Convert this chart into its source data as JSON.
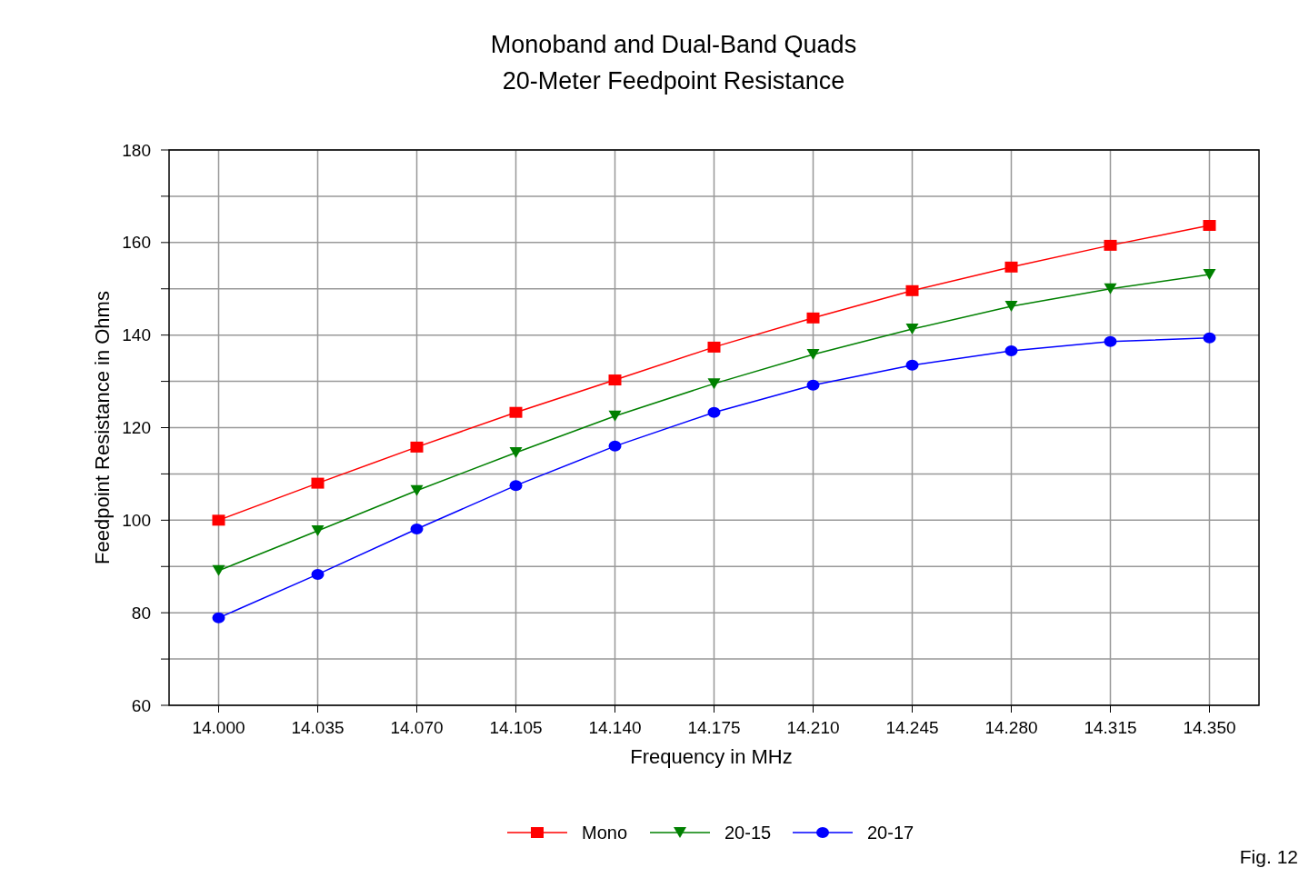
{
  "chart_data": {
    "type": "line",
    "title": "Monoband and Dual-Band Quads",
    "subtitle": "20-Meter Feedpoint Resistance",
    "xlabel": "Frequency in MHz",
    "ylabel": "Feedpoint Resistance in Ohms",
    "categories": [
      "14.000",
      "14.035",
      "14.070",
      "14.105",
      "14.140",
      "14.175",
      "14.210",
      "14.245",
      "14.280",
      "14.315",
      "14.350"
    ],
    "ylim": [
      60,
      180
    ],
    "yticks": [
      60,
      {
        "value": 70,
        "label": null
      },
      80,
      {
        "value": 90,
        "label": null
      },
      100,
      {
        "value": 110,
        "label": null
      },
      120,
      {
        "value": 130,
        "label": null
      },
      140,
      {
        "value": 150,
        "label": null
      },
      160,
      {
        "value": 170,
        "label": null
      },
      180
    ],
    "grid": true,
    "legend": "bottom",
    "line_style": "solid",
    "series": [
      {
        "name": "Mono",
        "color": "#ff0000",
        "marker": "square",
        "values": [
          100,
          108,
          115.8,
          123.3,
          130.3,
          137.4,
          143.7,
          149.6,
          154.7,
          159.4,
          163.7
        ]
      },
      {
        "name": "20-15",
        "color": "#008000",
        "marker": "triangle",
        "values": [
          89.1,
          97.7,
          106.4,
          114.6,
          122.5,
          129.5,
          135.8,
          141.3,
          146.2,
          150,
          153.1
        ]
      },
      {
        "name": "20-17",
        "color": "#0000ff",
        "marker": "circle",
        "values": [
          78.9,
          88.3,
          98.1,
          107.5,
          116,
          123.3,
          129.2,
          133.5,
          136.6,
          138.6,
          139.4
        ]
      }
    ],
    "annotations": [
      "Fig. 12"
    ]
  }
}
